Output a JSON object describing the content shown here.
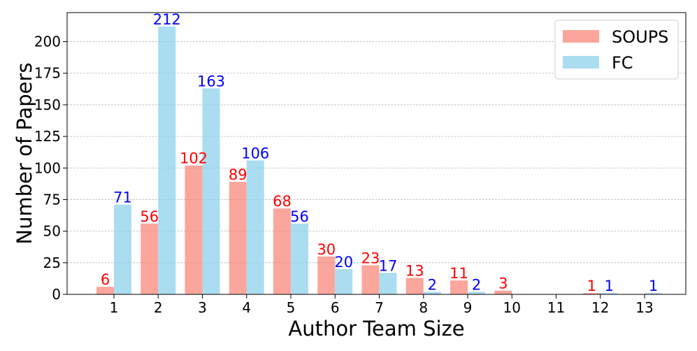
{
  "chart_data": {
    "type": "bar",
    "title": "",
    "xlabel": "Author Team Size",
    "ylabel": "Number of Papers",
    "categories": [
      "1",
      "2",
      "3",
      "4",
      "5",
      "6",
      "7",
      "8",
      "9",
      "10",
      "11",
      "12",
      "13"
    ],
    "series": [
      {
        "name": "SOUPS",
        "color": "#FA8072",
        "label_color": "#FF0000",
        "values": [
          6,
          56,
          102,
          89,
          68,
          30,
          23,
          13,
          11,
          3,
          0,
          1,
          0
        ],
        "labels": [
          "6",
          "56",
          "102",
          "89",
          "68",
          "30",
          "23",
          "13",
          "11",
          "3",
          "",
          "1",
          ""
        ]
      },
      {
        "name": "FC",
        "color": "#87CEEB",
        "label_color": "#0000FF",
        "values": [
          71,
          212,
          163,
          106,
          56,
          20,
          17,
          2,
          2,
          0,
          0,
          1,
          1
        ],
        "labels": [
          "71",
          "212",
          "163",
          "106",
          "56",
          "20",
          "17",
          "2",
          "2",
          "",
          "",
          "1",
          "1"
        ]
      }
    ],
    "ylim": [
      0,
      223
    ],
    "yticks": [
      0,
      25,
      50,
      75,
      100,
      125,
      150,
      175,
      200
    ],
    "grid": "y-dashed",
    "legend_position": "top-right"
  }
}
